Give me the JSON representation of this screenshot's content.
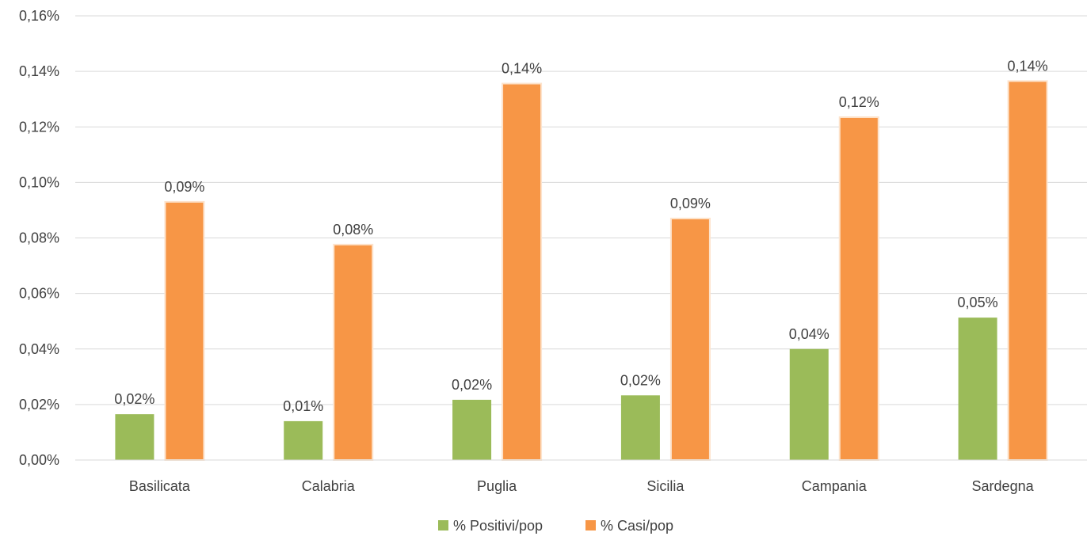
{
  "chart_data": {
    "type": "bar",
    "categories": [
      "Basilicata",
      "Calabria",
      "Puglia",
      "Sicilia",
      "Campania",
      "Sardegna"
    ],
    "series": [
      {
        "name": "% Positivi/pop",
        "color": "#9BBB59",
        "values": [
          0.0165,
          0.014,
          0.0217,
          0.0233,
          0.04,
          0.0513
        ],
        "labels": [
          "0,02%",
          "0,01%",
          "0,02%",
          "0,02%",
          "0,04%",
          "0,05%"
        ]
      },
      {
        "name": "% Casi/pop",
        "color": "#F79646",
        "values": [
          0.093,
          0.0776,
          0.1356,
          0.087,
          0.1235,
          0.1365
        ],
        "labels": [
          "0,09%",
          "0,08%",
          "0,14%",
          "0,09%",
          "0,12%",
          "0,14%"
        ]
      }
    ],
    "ylim": [
      0,
      0.16
    ],
    "yticks": [
      0,
      0.02,
      0.04,
      0.06,
      0.08,
      0.1,
      0.12,
      0.14,
      0.16
    ],
    "ytick_labels": [
      "0,00%",
      "0,02%",
      "0,04%",
      "0,06%",
      "0,08%",
      "0,10%",
      "0,12%",
      "0,14%",
      "0,16%"
    ],
    "grid": true,
    "legend": "bottom",
    "title": "",
    "xlabel": "",
    "ylabel": ""
  }
}
